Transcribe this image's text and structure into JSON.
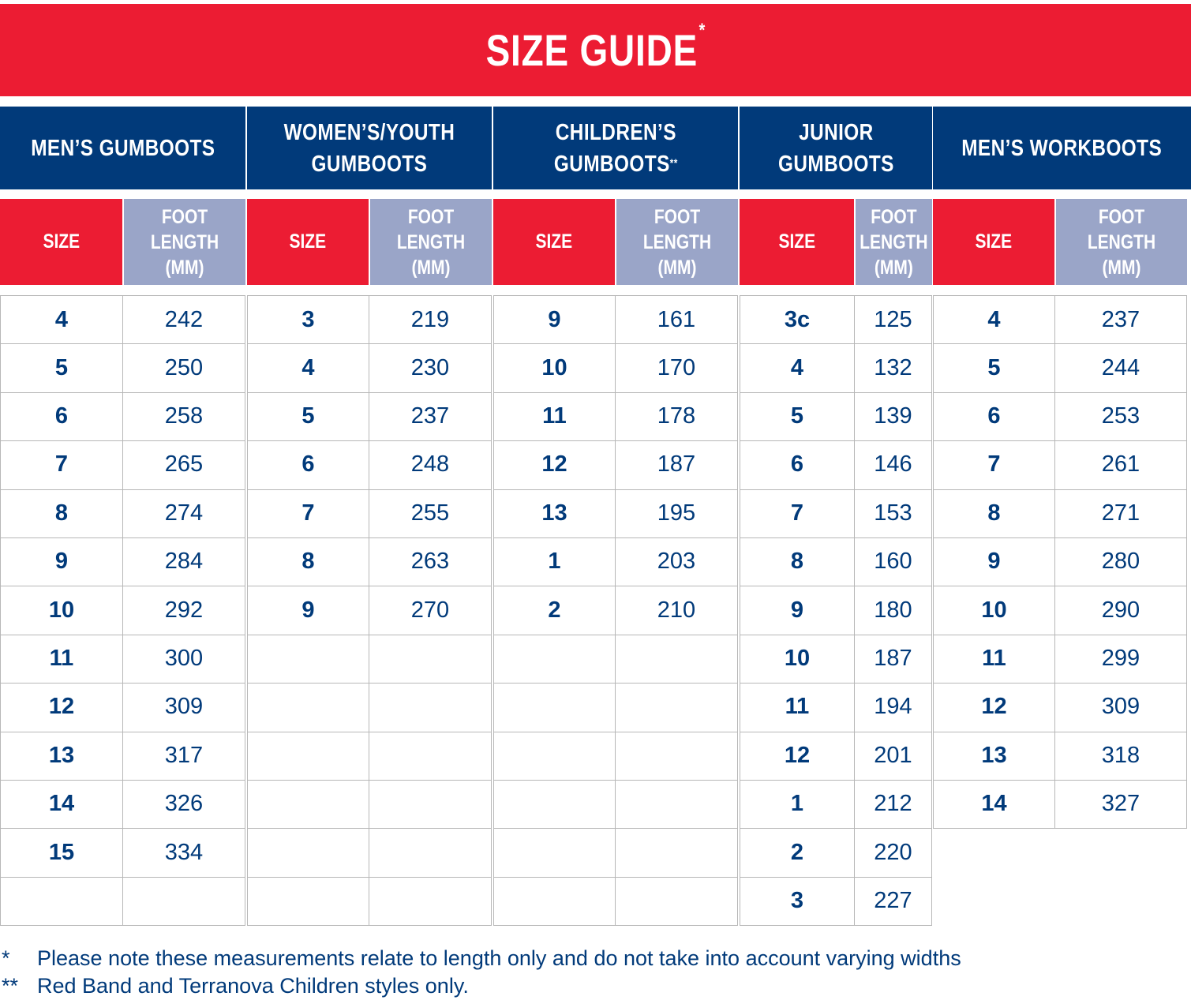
{
  "title": "SIZE GUIDE",
  "title_mark": "*",
  "colors": {
    "red": "#ec1c33",
    "navy": "#013a7a",
    "lavender": "#9aa5c8"
  },
  "columns": [
    {
      "header": "MEN’S GUMBOOTS",
      "header_mark": "",
      "size_label": "SIZE",
      "length_label": "FOOT LENGTH\n(MM)",
      "rows": [
        [
          "4",
          "242"
        ],
        [
          "5",
          "250"
        ],
        [
          "6",
          "258"
        ],
        [
          "7",
          "265"
        ],
        [
          "8",
          "274"
        ],
        [
          "9",
          "284"
        ],
        [
          "10",
          "292"
        ],
        [
          "11",
          "300"
        ],
        [
          "12",
          "309"
        ],
        [
          "13",
          "317"
        ],
        [
          "14",
          "326"
        ],
        [
          "15",
          "334"
        ],
        [
          "",
          ""
        ]
      ]
    },
    {
      "header": "WOMEN’S/YOUTH\nGUMBOOTS",
      "header_mark": "",
      "size_label": "SIZE",
      "length_label": "FOOT LENGTH\n(MM)",
      "rows": [
        [
          "3",
          "219"
        ],
        [
          "4",
          "230"
        ],
        [
          "5",
          "237"
        ],
        [
          "6",
          "248"
        ],
        [
          "7",
          "255"
        ],
        [
          "8",
          "263"
        ],
        [
          "9",
          "270"
        ],
        [
          "",
          ""
        ],
        [
          "",
          ""
        ],
        [
          "",
          ""
        ],
        [
          "",
          ""
        ],
        [
          "",
          ""
        ],
        [
          "",
          ""
        ]
      ]
    },
    {
      "header": "CHILDREN’S\nGUMBOOTS",
      "header_mark": "**",
      "size_label": "SIZE",
      "length_label": "FOOT LENGTH\n(MM)",
      "rows": [
        [
          "9",
          "161"
        ],
        [
          "10",
          "170"
        ],
        [
          "11",
          "178"
        ],
        [
          "12",
          "187"
        ],
        [
          "13",
          "195"
        ],
        [
          "1",
          "203"
        ],
        [
          "2",
          "210"
        ],
        [
          "",
          ""
        ],
        [
          "",
          ""
        ],
        [
          "",
          ""
        ],
        [
          "",
          ""
        ],
        [
          "",
          ""
        ],
        [
          "",
          ""
        ]
      ]
    },
    {
      "header": "JUNIOR\nGUMBOOTS",
      "header_mark": "",
      "size_label": "SIZE",
      "length_label": "FOOT\nLENGTH\n(MM)",
      "rows": [
        [
          "3c",
          "125"
        ],
        [
          "4",
          "132"
        ],
        [
          "5",
          "139"
        ],
        [
          "6",
          "146"
        ],
        [
          "7",
          "153"
        ],
        [
          "8",
          "160"
        ],
        [
          "9",
          "180"
        ],
        [
          "10",
          "187"
        ],
        [
          "11",
          "194"
        ],
        [
          "12",
          "201"
        ],
        [
          "1",
          "212"
        ],
        [
          "2",
          "220"
        ],
        [
          "3",
          "227"
        ]
      ]
    },
    {
      "header": "MEN’S WORKBOOTS",
      "header_mark": "",
      "size_label": "SIZE",
      "length_label": "FOOT LENGTH\n(MM)",
      "rows": [
        [
          "4",
          "237"
        ],
        [
          "5",
          "244"
        ],
        [
          "6",
          "253"
        ],
        [
          "7",
          "261"
        ],
        [
          "8",
          "271"
        ],
        [
          "9",
          "280"
        ],
        [
          "10",
          "290"
        ],
        [
          "11",
          "299"
        ],
        [
          "12",
          "309"
        ],
        [
          "13",
          "318"
        ],
        [
          "14",
          "327"
        ]
      ]
    }
  ],
  "footnotes": [
    {
      "marker": "*",
      "text": "Please note these measurements relate to length only and do not take into account varying widths"
    },
    {
      "marker": "**",
      "text": "Red Band and Terranova Children styles only."
    }
  ]
}
